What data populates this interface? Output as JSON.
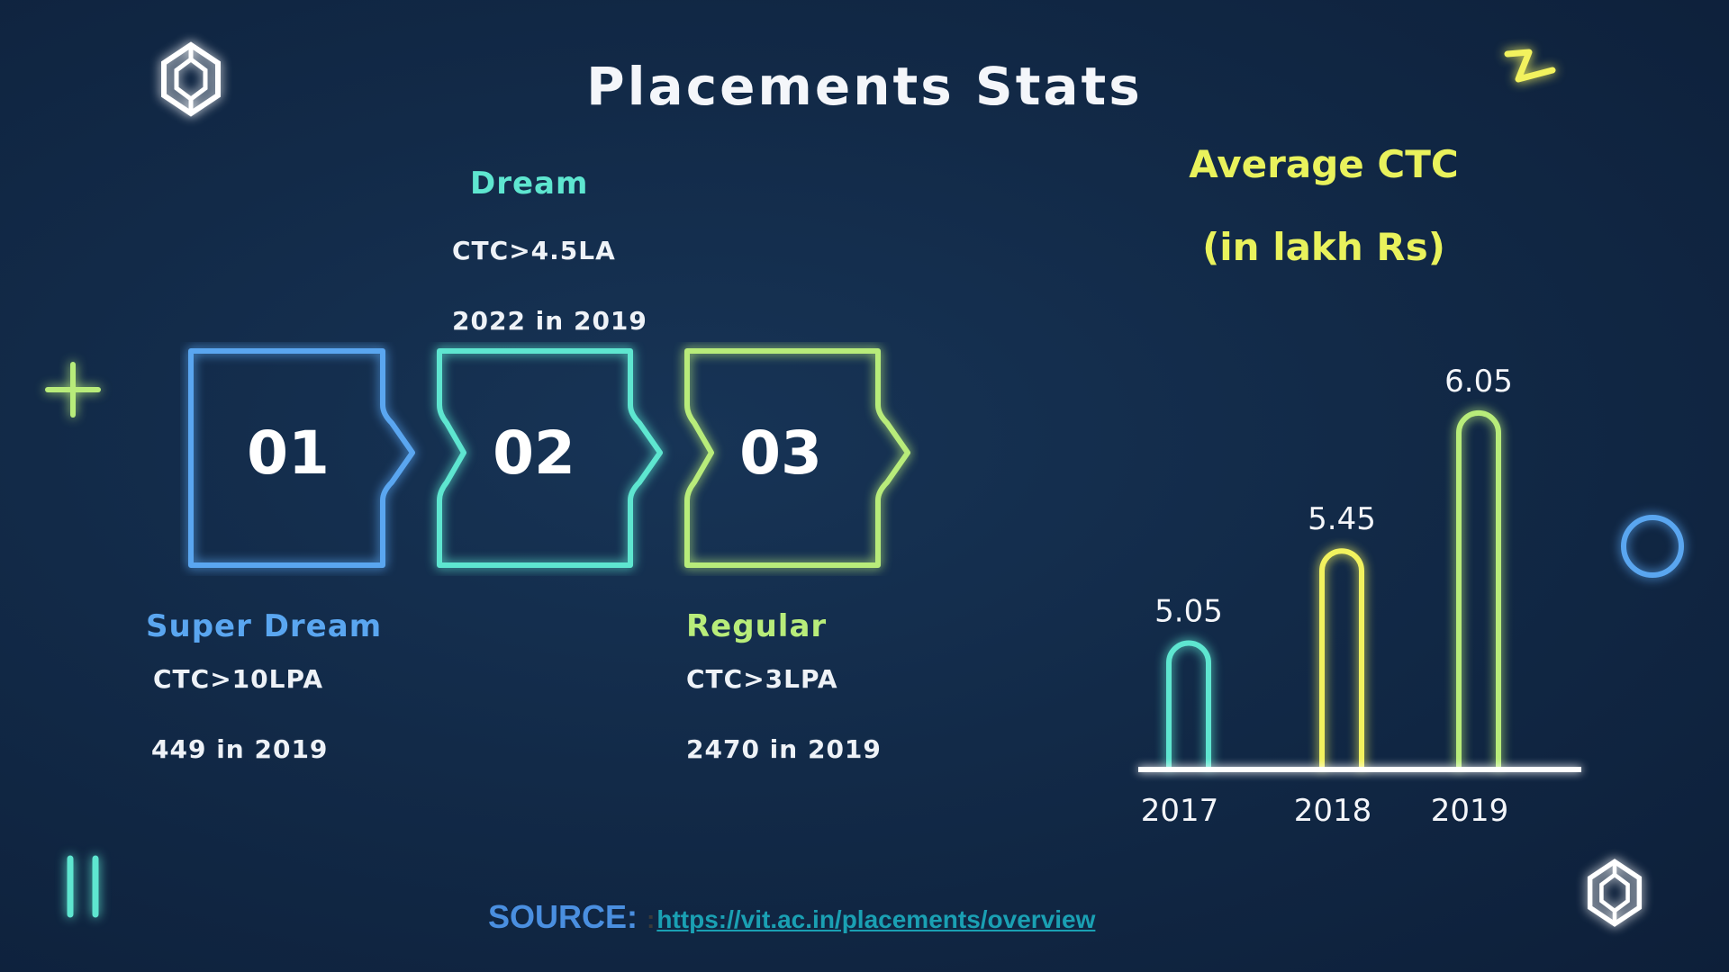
{
  "title": "Placements Stats",
  "categories": [
    {
      "number": "01",
      "label": "Super Dream",
      "criteria": "CTC>10LPA",
      "count": "449 in 2019",
      "color": "#5aa6f0"
    },
    {
      "number": "02",
      "label": "Dream",
      "criteria": "CTC>4.5LA",
      "count": "2022 in 2019",
      "color": "#5ee6d0"
    },
    {
      "number": "03",
      "label": "Regular",
      "criteria": "CTC>3LPA",
      "count": "2470 in 2019",
      "color": "#b8ec7a"
    }
  ],
  "chart_heading": {
    "line1": "Average CTC",
    "line2": "(in lakh Rs)"
  },
  "source": {
    "label": "SOURCE:",
    "separator": ":",
    "link": "https://vit.ac.in/placements/overview"
  },
  "chart_data": {
    "type": "bar",
    "title": "Average CTC (in lakh Rs)",
    "categories": [
      "2017",
      "2018",
      "2019"
    ],
    "values": [
      5.05,
      5.45,
      6.05
    ],
    "value_labels": [
      "5.05",
      "5.45",
      "6.05"
    ],
    "colors": [
      "#5ee6d0",
      "#f2f25e",
      "#b8ec7a"
    ],
    "ylim": [
      4.5,
      6.3
    ],
    "grid": false,
    "xlabel": "",
    "ylabel": ""
  }
}
